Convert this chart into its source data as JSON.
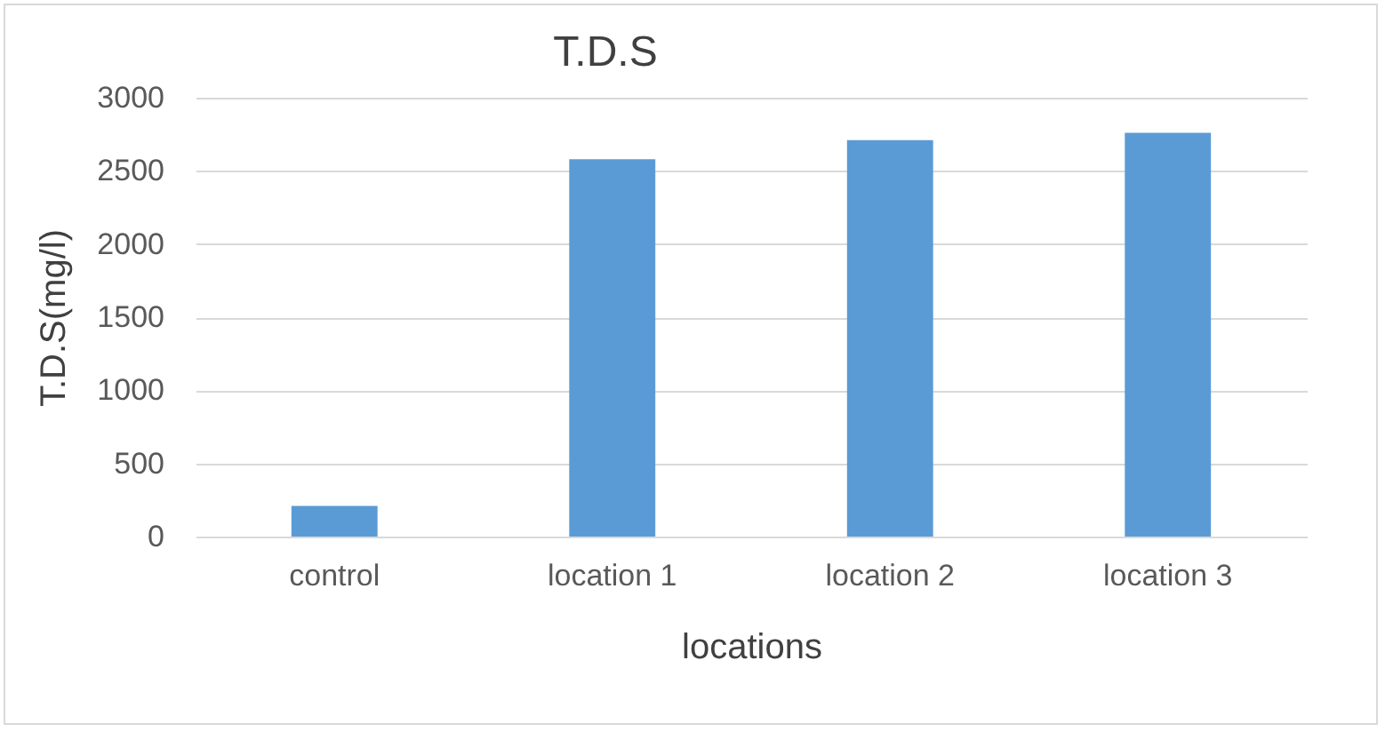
{
  "chart_data": {
    "type": "bar",
    "title": "T.D.S",
    "xlabel": "locations",
    "ylabel": "T.D.S(mg/l)",
    "categories": [
      "control",
      "location 1",
      "location 2",
      "location 3"
    ],
    "values": [
      210,
      2580,
      2710,
      2760
    ],
    "color": "#5b9bd5",
    "ylim": [
      0,
      3000
    ],
    "yticks": [
      0,
      500,
      1000,
      1500,
      2000,
      2500,
      3000
    ],
    "grid": "y"
  }
}
